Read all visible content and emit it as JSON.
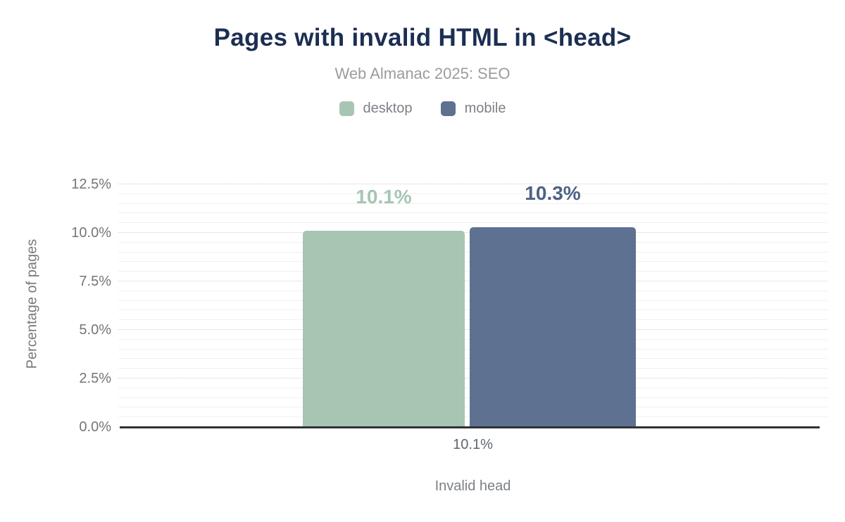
{
  "header": {
    "title": "Pages with invalid HTML in <head>",
    "subtitle": "Web Almanac 2025: SEO"
  },
  "chart_data": {
    "type": "bar",
    "title": "Pages with invalid HTML in <head>",
    "subtitle": "Web Almanac 2025: SEO",
    "categories": [
      "10.1%"
    ],
    "series": [
      {
        "name": "desktop",
        "values": [
          10.1
        ],
        "color": "#a6c6b3",
        "label_color": "#a6c6b3",
        "data_label": "10.1%"
      },
      {
        "name": "mobile",
        "values": [
          10.3
        ],
        "color": "#5e7190",
        "label_color": "#4e6287",
        "data_label": "10.3%"
      }
    ],
    "xlabel": "Invalid head",
    "ylabel": "Percentage of pages",
    "ylim": [
      0,
      12.5
    ],
    "ytick_step": 2.5,
    "yminor_step": 0.5,
    "ytick_suffix": "%",
    "grid": true,
    "legend_position": "top",
    "colors": {
      "title": "#1c2e52",
      "subtitle": "#9c9c9c",
      "axis_line": "#2e3236",
      "major_grid": "#cfcfcf",
      "minor_grid": "#f0f0f0",
      "tick_text": "#737579"
    }
  }
}
